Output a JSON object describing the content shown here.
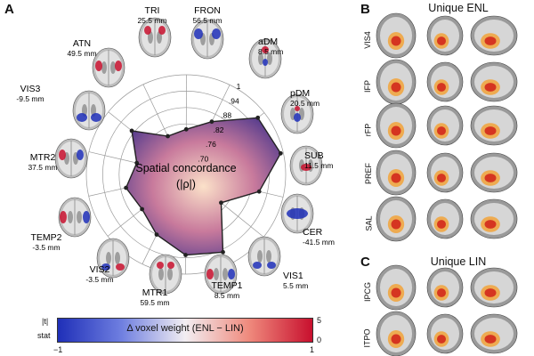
{
  "panels": {
    "a": {
      "letter": "A"
    },
    "b": {
      "letter": "B",
      "title": "Unique ENL",
      "rows": [
        "VIS4",
        "IFP",
        "rFP",
        "PREF",
        "SAL"
      ]
    },
    "c": {
      "letter": "C",
      "title": "Unique LIN",
      "rows": [
        "IPCG",
        "ITPO"
      ]
    }
  },
  "radar": {
    "center_label_line1": "Spatial concordance",
    "center_label_line2": "(|ρ|)",
    "ring_labels": [
      ".70",
      ".76",
      ".82",
      ".88",
      ".94",
      "1"
    ],
    "range": [
      0.7,
      1.0
    ]
  },
  "regions": [
    {
      "name": "TRI",
      "mm": "25.5 mm",
      "value": 0.85
    },
    {
      "name": "FRON",
      "mm": "56.5 mm",
      "value": 0.97
    },
    {
      "name": "aDM",
      "mm": "8.5 mm",
      "value": 0.99
    },
    {
      "name": "pDM",
      "mm": "20.5 mm",
      "value": 0.91
    },
    {
      "name": "SUB",
      "mm": "11.5 mm",
      "value": 0.8
    },
    {
      "name": "CER",
      "mm": "-41.5 mm",
      "value": 0.95
    },
    {
      "name": "VIS1",
      "mm": "5.5 mm",
      "value": 0.93
    },
    {
      "name": "TEMP1",
      "mm": "8.5 mm",
      "value": 0.88
    },
    {
      "name": "MTR1",
      "mm": "59.5 mm",
      "value": 0.84
    },
    {
      "name": "VIS2",
      "mm": "-3.5 mm",
      "value": 0.86
    },
    {
      "name": "TEMP2",
      "mm": "-3.5 mm",
      "value": 0.82
    },
    {
      "name": "MTR2",
      "mm": "37.5 mm",
      "value": 0.89
    },
    {
      "name": "VIS3",
      "mm": "-9.5 mm",
      "value": 0.79
    },
    {
      "name": "ATN",
      "mm": "49.5 mm",
      "value": 0.8
    }
  ],
  "colorbar": {
    "label": "Δ voxel weight (ENL − LIN)",
    "t_label": "|t|",
    "stat_label": "stat",
    "t_max": "5",
    "t_min": "0",
    "left_value": "−1",
    "right_value": "1",
    "colors": {
      "negative": "#1f2fb8",
      "positive": "#c8102e"
    }
  }
}
